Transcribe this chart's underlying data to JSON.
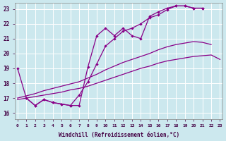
{
  "xlabel": "Windchill (Refroidissement éolien,°C)",
  "background_color": "#cce8ee",
  "line_color": "#880088",
  "xlim": [
    -0.3,
    23.3
  ],
  "ylim": [
    15.6,
    23.4
  ],
  "xtick_values": [
    0,
    1,
    2,
    3,
    4,
    5,
    6,
    7,
    8,
    9,
    10,
    11,
    12,
    13,
    14,
    15,
    16,
    17,
    18,
    19,
    20,
    21,
    22,
    23
  ],
  "ytick_values": [
    16,
    17,
    18,
    19,
    20,
    21,
    22,
    23
  ],
  "series": [
    {
      "x": [
        0,
        1,
        2,
        3,
        4,
        5,
        6,
        7,
        8,
        9,
        10,
        11,
        12,
        13,
        14,
        15,
        16,
        17,
        18,
        19,
        20,
        21
      ],
      "y": [
        19.0,
        17.0,
        16.5,
        16.9,
        16.7,
        16.6,
        16.5,
        16.5,
        19.1,
        21.2,
        21.7,
        21.2,
        21.7,
        21.2,
        21.0,
        22.5,
        22.8,
        23.05,
        23.2,
        23.2,
        23.05,
        23.05
      ],
      "markers": true
    },
    {
      "x": [
        1,
        2,
        3,
        4,
        5,
        6,
        7,
        8,
        9,
        10,
        11,
        12,
        13,
        14,
        15,
        16,
        17,
        18,
        19,
        20,
        21
      ],
      "y": [
        17.0,
        16.5,
        16.9,
        16.7,
        16.6,
        16.5,
        17.2,
        18.1,
        19.3,
        20.5,
        21.0,
        21.5,
        21.7,
        22.0,
        22.4,
        22.6,
        22.95,
        23.2,
        23.2,
        23.05,
        23.05
      ],
      "markers": true
    },
    {
      "x": [
        0,
        1,
        2,
        3,
        4,
        5,
        6,
        7,
        8,
        9,
        10,
        11,
        12,
        13,
        14,
        15,
        16,
        17,
        18,
        19,
        20,
        21,
        22,
        23
      ],
      "y": [
        17.0,
        17.15,
        17.3,
        17.5,
        17.65,
        17.8,
        17.95,
        18.1,
        18.35,
        18.6,
        18.9,
        19.15,
        19.4,
        19.6,
        19.8,
        20.0,
        20.25,
        20.45,
        20.6,
        20.7,
        20.8,
        20.75,
        20.6,
        null
      ],
      "markers": false
    },
    {
      "x": [
        0,
        1,
        2,
        3,
        4,
        5,
        6,
        7,
        8,
        9,
        10,
        11,
        12,
        13,
        14,
        15,
        16,
        17,
        18,
        19,
        20,
        21,
        22,
        23
      ],
      "y": [
        16.9,
        17.0,
        17.1,
        17.2,
        17.3,
        17.4,
        17.55,
        17.65,
        17.8,
        18.0,
        18.2,
        18.4,
        18.6,
        18.8,
        19.0,
        19.15,
        19.35,
        19.5,
        19.6,
        19.7,
        19.8,
        19.85,
        19.9,
        19.6
      ],
      "markers": false
    }
  ]
}
